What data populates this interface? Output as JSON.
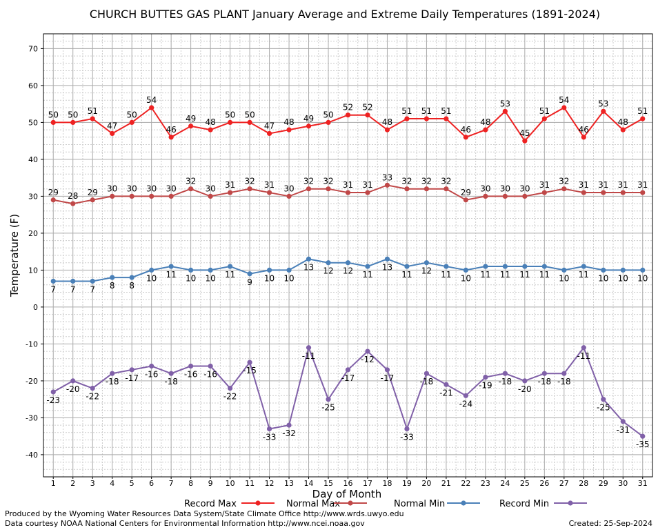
{
  "chart_data": {
    "type": "line",
    "title": "CHURCH BUTTES GAS PLANT January Average and Extreme Daily Temperatures (1891-2024)",
    "xlabel": "Day of Month",
    "ylabel": "Temperature (F)",
    "xlim": [
      0.5,
      31.5
    ],
    "ylim": [
      -46,
      74
    ],
    "yticks": [
      70,
      60,
      50,
      40,
      30,
      20,
      10,
      0,
      -10,
      -20,
      -30,
      -40
    ],
    "x": [
      1,
      2,
      3,
      4,
      5,
      6,
      7,
      8,
      9,
      10,
      11,
      12,
      13,
      14,
      15,
      16,
      17,
      18,
      19,
      20,
      21,
      22,
      23,
      24,
      25,
      26,
      27,
      28,
      29,
      30,
      31
    ],
    "grid": true,
    "legend_position": "bottom",
    "series": [
      {
        "name": "Record Max",
        "color": "#ee2222",
        "values": [
          50,
          50,
          51,
          47,
          50,
          54,
          46,
          49,
          48,
          50,
          50,
          47,
          48,
          49,
          50,
          52,
          52,
          48,
          51,
          51,
          51,
          46,
          48,
          53,
          45,
          51,
          54,
          46,
          53,
          48,
          51
        ]
      },
      {
        "name": "Normal Max",
        "color": "#c04848",
        "values": [
          29,
          28,
          29,
          30,
          30,
          30,
          30,
          32,
          30,
          31,
          32,
          31,
          30,
          32,
          32,
          31,
          31,
          33,
          32,
          32,
          32,
          29,
          30,
          30,
          30,
          31,
          32,
          31,
          31,
          31,
          31
        ]
      },
      {
        "name": "Normal Min",
        "color": "#4a80b8",
        "values": [
          7,
          7,
          7,
          8,
          8,
          10,
          11,
          10,
          10,
          11,
          9,
          10,
          10,
          13,
          12,
          12,
          11,
          13,
          11,
          12,
          11,
          10,
          11,
          11,
          11,
          11,
          10,
          11,
          10,
          10,
          10
        ]
      },
      {
        "name": "Record Min",
        "color": "#8060a8",
        "values": [
          -23,
          -20,
          -22,
          -18,
          -17,
          -16,
          -18,
          -16,
          -16,
          -22,
          -15,
          -33,
          -32,
          -11,
          -25,
          -17,
          -12,
          -17,
          -33,
          -18,
          -21,
          -24,
          -19,
          -18,
          -20,
          -18,
          -18,
          -11,
          -25,
          -31,
          -35
        ]
      }
    ]
  },
  "footer": {
    "produced_by": "Produced by the Wyoming Water Resources Data System/State Climate Office http://www.wrds.uwyo.edu",
    "courtesy": "Data courtesy NOAA National Centers for Environmental Information http://www.ncei.noaa.gov",
    "created": "Created:  25-Sep-2024"
  }
}
